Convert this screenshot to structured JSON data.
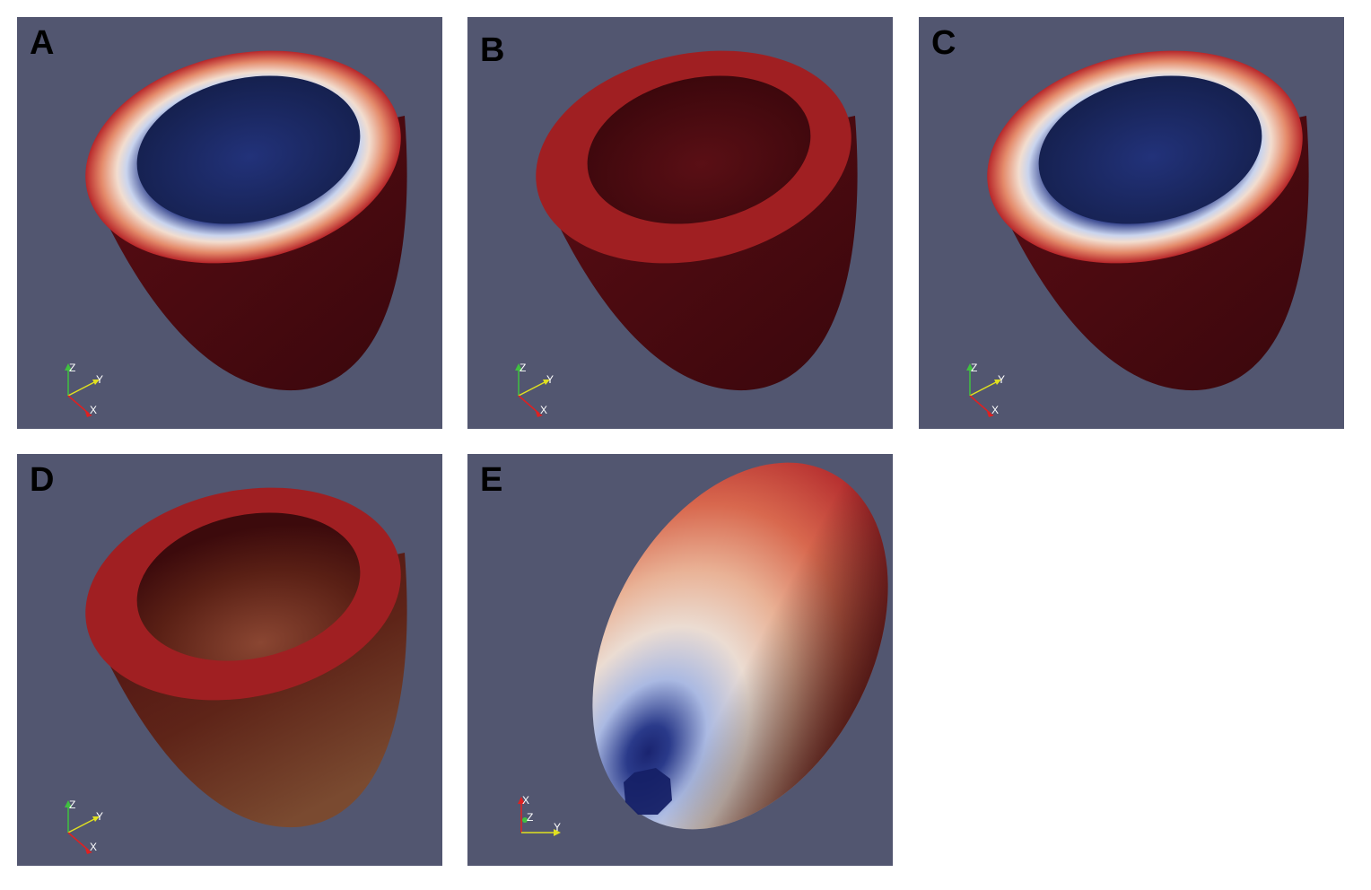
{
  "panels": [
    {
      "label": "A",
      "view": "cut-gradient",
      "axes": {
        "up": "Z",
        "right": "Y",
        "out": "X"
      }
    },
    {
      "label": "B",
      "view": "cut-solid",
      "axes": {
        "up": "Z",
        "right": "Y",
        "out": "X"
      }
    },
    {
      "label": "C",
      "view": "cut-gradient",
      "axes": {
        "up": "Z",
        "right": "Y",
        "out": "X"
      }
    },
    {
      "label": "D",
      "view": "cut-solid-warm",
      "axes": {
        "up": "Z",
        "right": "Y",
        "out": "X"
      }
    },
    {
      "label": "E",
      "view": "closed-surface",
      "axes": {
        "up": "X",
        "right": "Y",
        "out": "Z"
      }
    }
  ],
  "colors": {
    "background": "#525670",
    "deep_red": "#4a0a10",
    "ring_red": "#a01f22",
    "blue_inner": "#1f2a66",
    "axis_red": "#e02020",
    "axis_green": "#40c040",
    "axis_yellow": "#e0e020"
  }
}
